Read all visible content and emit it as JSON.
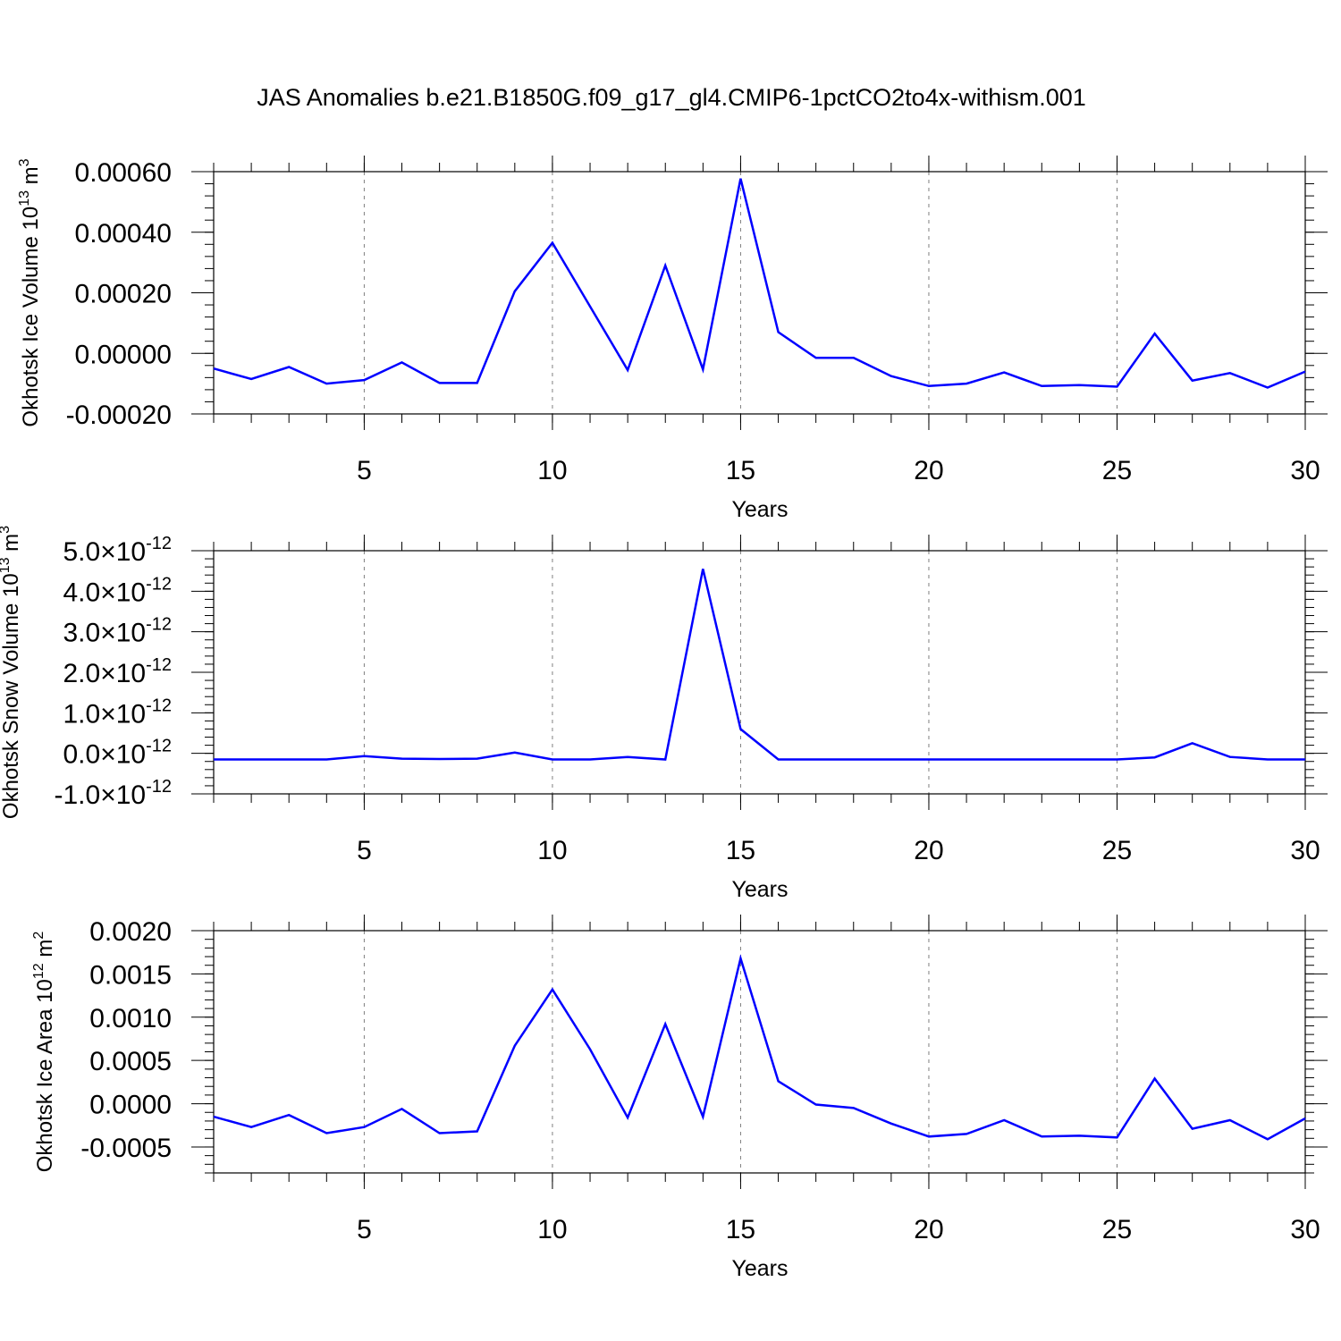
{
  "title": "JAS Anomalies b.e21.B1850G.f09_g17_gl4.CMIP6-1pctCO2to4x-withism.001",
  "colors": {
    "series": "#0000ff",
    "axis": "#000000",
    "grid": "#7f7f7f"
  },
  "chart_data": [
    {
      "type": "line",
      "ylabel_main": "Okhotsk Ice Volume 10",
      "ylabel_exp": "13",
      "ylabel_unit": " m",
      "ylabel_unit_exp": "3",
      "xlabel": "Years",
      "xlim": [
        1,
        30
      ],
      "ylim": [
        -0.0002,
        0.0006
      ],
      "x_ticks": [
        "5",
        "10",
        "15",
        "20",
        "25",
        "30"
      ],
      "y_ticks": [
        {
          "value": -0.0002,
          "label": "-0.00020"
        },
        {
          "value": 0.0,
          "label": "0.00000"
        },
        {
          "value": 0.0002,
          "label": "0.00020"
        },
        {
          "value": 0.0004,
          "label": "0.00040"
        },
        {
          "value": 0.0006,
          "label": "0.00060"
        }
      ],
      "grid": "vertical dashed at major x ticks",
      "series": [
        {
          "x": [
            1,
            2,
            3,
            4,
            5,
            6,
            7,
            8,
            9,
            10,
            11,
            12,
            13,
            14,
            15,
            16,
            17,
            18,
            19,
            20,
            21,
            22,
            23,
            24,
            25,
            26,
            27,
            28,
            29,
            30
          ],
          "values": [
            -5e-05,
            -8.5e-05,
            -4.5e-05,
            -0.0001,
            -8.8e-05,
            -3e-05,
            -9.8e-05,
            -9.8e-05,
            0.000205,
            0.000365,
            0.000155,
            -5.5e-05,
            0.00029,
            -5.3e-05,
            0.000577,
            7e-05,
            -1.5e-05,
            -1.5e-05,
            -7.5e-05,
            -0.000108,
            -0.0001,
            -6.3e-05,
            -0.000108,
            -0.000105,
            -0.00011,
            6.5e-05,
            -9e-05,
            -6.5e-05,
            -0.000113,
            -6e-05
          ]
        }
      ]
    },
    {
      "type": "line",
      "ylabel_main": "Okhotsk Snow Volume 10",
      "ylabel_exp": "13",
      "ylabel_unit": " m",
      "ylabel_unit_exp": "3",
      "xlabel": "Years",
      "xlim": [
        1,
        30
      ],
      "ylim": [
        -1e-12,
        5e-12
      ],
      "x_ticks": [
        "5",
        "10",
        "15",
        "20",
        "25",
        "30"
      ],
      "y_ticks": [
        {
          "value": -1e-12,
          "mantissa": "-1.0",
          "times": "×",
          "base": "10",
          "exp": "-12"
        },
        {
          "value": 0.0,
          "mantissa": "0.0",
          "times": "×",
          "base": "10",
          "exp": "-12"
        },
        {
          "value": 1e-12,
          "mantissa": "1.0",
          "times": "×",
          "base": "10",
          "exp": "-12"
        },
        {
          "value": 2e-12,
          "mantissa": "2.0",
          "times": "×",
          "base": "10",
          "exp": "-12"
        },
        {
          "value": 3e-12,
          "mantissa": "3.0",
          "times": "×",
          "base": "10",
          "exp": "-12"
        },
        {
          "value": 4e-12,
          "mantissa": "4.0",
          "times": "×",
          "base": "10",
          "exp": "-12"
        },
        {
          "value": 5e-12,
          "mantissa": "5.0",
          "times": "×",
          "base": "10",
          "exp": "-12"
        }
      ],
      "grid": "vertical dashed at major x ticks",
      "series": [
        {
          "x": [
            1,
            2,
            3,
            4,
            5,
            6,
            7,
            8,
            9,
            10,
            11,
            12,
            13,
            14,
            15,
            16,
            17,
            18,
            19,
            20,
            21,
            22,
            23,
            24,
            25,
            26,
            27,
            28,
            29,
            30
          ],
          "values": [
            -1.5e-13,
            -1.5e-13,
            -1.5e-13,
            -1.5e-13,
            -7e-14,
            -1.3e-13,
            -1.4e-13,
            -1.3e-13,
            2e-14,
            -1.5e-13,
            -1.5e-13,
            -9e-14,
            -1.5e-13,
            4.55e-12,
            6e-13,
            -1.5e-13,
            -1.5e-13,
            -1.5e-13,
            -1.5e-13,
            -1.5e-13,
            -1.5e-13,
            -1.5e-13,
            -1.5e-13,
            -1.5e-13,
            -1.5e-13,
            -1e-13,
            2.5e-13,
            -9e-14,
            -1.5e-13,
            -1.5e-13
          ]
        }
      ]
    },
    {
      "type": "line",
      "ylabel_main": "Okhotsk Ice Area 10",
      "ylabel_exp": "12",
      "ylabel_unit": " m",
      "ylabel_unit_exp": "2",
      "xlabel": "Years",
      "xlim": [
        1,
        30
      ],
      "ylim": [
        -0.0008,
        0.002
      ],
      "x_ticks": [
        "5",
        "10",
        "15",
        "20",
        "25",
        "30"
      ],
      "y_ticks": [
        {
          "value": -0.0005,
          "label": "-0.0005"
        },
        {
          "value": 0.0,
          "label": "0.0000"
        },
        {
          "value": 0.0005,
          "label": "0.0005"
        },
        {
          "value": 0.001,
          "label": "0.0010"
        },
        {
          "value": 0.0015,
          "label": "0.0015"
        },
        {
          "value": 0.002,
          "label": "0.0020"
        }
      ],
      "grid": "vertical dashed at major x ticks",
      "series": [
        {
          "x": [
            1,
            2,
            3,
            4,
            5,
            6,
            7,
            8,
            9,
            10,
            11,
            12,
            13,
            14,
            15,
            16,
            17,
            18,
            19,
            20,
            21,
            22,
            23,
            24,
            25,
            26,
            27,
            28,
            29,
            30
          ],
          "values": [
            -0.00015,
            -0.00027,
            -0.00013,
            -0.00034,
            -0.00027,
            -6e-05,
            -0.00034,
            -0.00032,
            0.00067,
            0.00132,
            0.00063,
            -0.00016,
            0.00092,
            -0.00015,
            0.00168,
            0.00026,
            -1e-05,
            -5e-05,
            -0.00023,
            -0.00038,
            -0.00035,
            -0.00019,
            -0.00038,
            -0.00037,
            -0.00039,
            0.00029,
            -0.00029,
            -0.00019,
            -0.00041,
            -0.00017
          ]
        }
      ]
    }
  ]
}
